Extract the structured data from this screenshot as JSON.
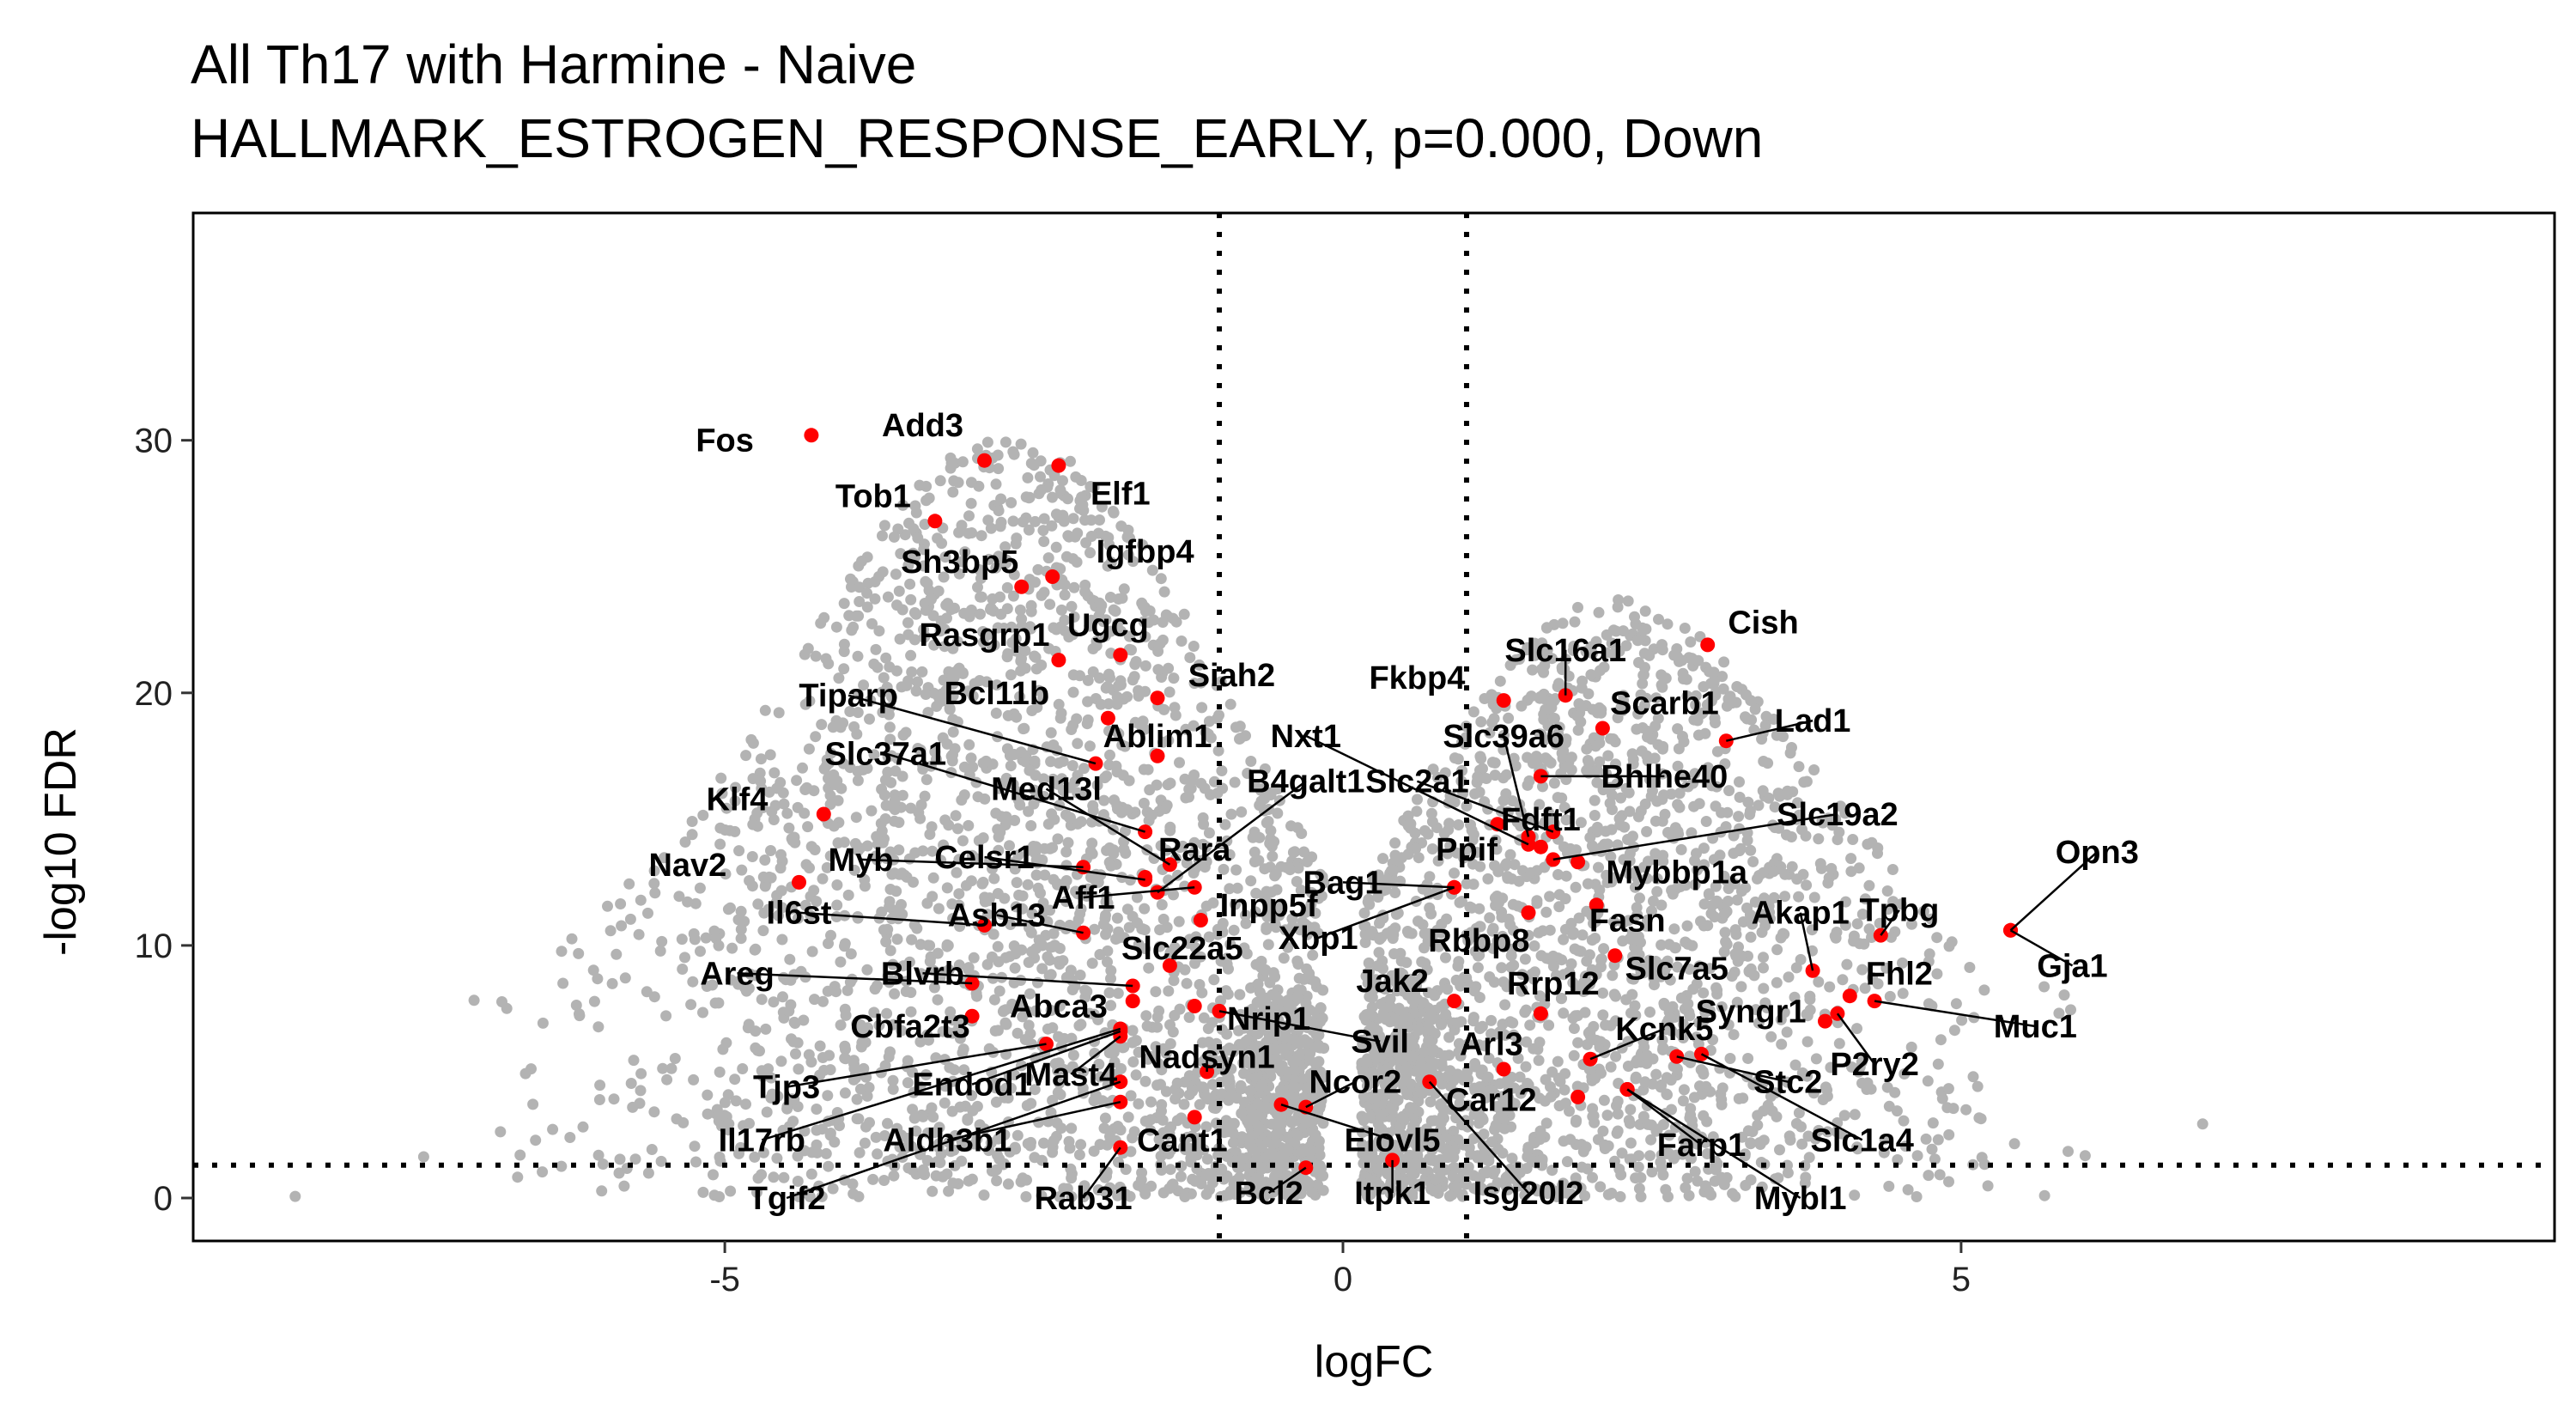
{
  "chart_data": {
    "type": "scatter",
    "title": "All Th17 with Harmine - Naive",
    "subtitle": "HALLMARK_ESTROGEN_RESPONSE_EARLY, p=0.000, Down",
    "xlabel": "logFC",
    "ylabel": "-log10 FDR",
    "xlim": [
      -9.3,
      9.8
    ],
    "ylim": [
      -1.7,
      39
    ],
    "xticks": [
      -5,
      0,
      5
    ],
    "yticks": [
      0,
      10,
      20,
      30
    ],
    "xtick_labels": [
      "-5",
      "0",
      "5"
    ],
    "ytick_labels": [
      "0",
      "10",
      "20",
      "30"
    ],
    "thresholds": {
      "logFC": [
        -1,
        1
      ],
      "neg_log10_fdr": 1.3
    },
    "grid": false,
    "legend": "none",
    "colors": {
      "background_points": "#b3b3b3",
      "highlight_points": "#ff0000",
      "threshold_lines": "#000000"
    },
    "genes": [
      {
        "name": "Fos",
        "x": -4.3,
        "y": 30.2,
        "lx": -5.0,
        "ly": 30.0
      },
      {
        "name": "Add3",
        "x": -2.9,
        "y": 29.2,
        "lx": -3.4,
        "ly": 30.6
      },
      {
        "name": "Tob1",
        "x": -3.3,
        "y": 26.8,
        "lx": -3.8,
        "ly": 27.8
      },
      {
        "name": "Elf1",
        "x": -2.3,
        "y": 29.0,
        "lx": -1.8,
        "ly": 27.9
      },
      {
        "name": "Igfbp4",
        "x": -2.35,
        "y": 24.6,
        "lx": -1.6,
        "ly": 25.6
      },
      {
        "name": "Sh3bp5",
        "x": -2.6,
        "y": 24.2,
        "lx": -3.1,
        "ly": 25.2
      },
      {
        "name": "Ugcg",
        "x": -1.8,
        "y": 21.5,
        "lx": -1.9,
        "ly": 22.7
      },
      {
        "name": "Rasgrp1",
        "x": -2.3,
        "y": 21.3,
        "lx": -2.9,
        "ly": 22.3
      },
      {
        "name": "Siah2",
        "x": -1.5,
        "y": 19.8,
        "lx": -0.9,
        "ly": 20.7
      },
      {
        "name": "Tiparp",
        "x": -2.0,
        "y": 17.2,
        "lx": -4.0,
        "ly": 19.9,
        "line": true
      },
      {
        "name": "Bcl11b",
        "x": -1.9,
        "y": 19.0,
        "lx": -2.8,
        "ly": 20.0
      },
      {
        "name": "Ablim1",
        "x": -1.5,
        "y": 17.5,
        "lx": -1.5,
        "ly": 18.3
      },
      {
        "name": "Slc37a1",
        "x": -1.6,
        "y": 14.5,
        "lx": -3.7,
        "ly": 17.6,
        "line": true
      },
      {
        "name": "Med13l",
        "x": -1.4,
        "y": 13.2,
        "lx": -2.4,
        "ly": 16.2,
        "line": true
      },
      {
        "name": "B4galt1",
        "x": -1.5,
        "y": 12.1,
        "lx": -0.3,
        "ly": 16.5,
        "line": true
      },
      {
        "name": "Slc2a1",
        "x": 1.7,
        "y": 14.5,
        "lx": 0.6,
        "ly": 16.5,
        "line": true
      },
      {
        "name": "Klf4",
        "x": -4.2,
        "y": 15.2,
        "lx": -4.9,
        "ly": 15.8
      },
      {
        "name": "Rara",
        "x": -1.6,
        "y": 12.7,
        "lx": -1.2,
        "ly": 13.8
      },
      {
        "name": "Nav2",
        "x": -4.4,
        "y": 12.5,
        "lx": -5.3,
        "ly": 13.2
      },
      {
        "name": "Myb",
        "x": -2.1,
        "y": 13.1,
        "lx": -3.9,
        "ly": 13.4,
        "line": true
      },
      {
        "name": "Celsr1",
        "x": -1.6,
        "y": 12.6,
        "lx": -2.9,
        "ly": 13.5,
        "line": true
      },
      {
        "name": "Aff1",
        "x": -1.2,
        "y": 12.3,
        "lx": -2.1,
        "ly": 11.9,
        "line": true
      },
      {
        "name": "Inpp5f",
        "x": -1.15,
        "y": 11.0,
        "lx": -0.6,
        "ly": 11.6
      },
      {
        "name": "Asb13",
        "x": -2.1,
        "y": 10.5,
        "lx": -2.8,
        "ly": 11.2,
        "line": true
      },
      {
        "name": "Il6st",
        "x": -2.9,
        "y": 10.8,
        "lx": -4.4,
        "ly": 11.3,
        "line": true
      },
      {
        "name": "Xbp1",
        "x": 0.9,
        "y": 12.3,
        "lx": -0.2,
        "ly": 10.3,
        "line": true
      },
      {
        "name": "Bag1",
        "x": 0.9,
        "y": 12.3,
        "lx": 0.0,
        "ly": 12.5,
        "line": true
      },
      {
        "name": "Slc22a5",
        "x": -1.4,
        "y": 9.2,
        "lx": -1.3,
        "ly": 9.9
      },
      {
        "name": "Blvrb",
        "x": -1.7,
        "y": 8.4,
        "lx": -3.4,
        "ly": 8.9,
        "line": true
      },
      {
        "name": "Areg",
        "x": -3.0,
        "y": 8.5,
        "lx": -4.9,
        "ly": 8.9,
        "line": true
      },
      {
        "name": "Abca3",
        "x": -1.7,
        "y": 7.8,
        "lx": -2.3,
        "ly": 7.6
      },
      {
        "name": "Cbfa2t3",
        "x": -3.0,
        "y": 7.2,
        "lx": -3.5,
        "ly": 6.8
      },
      {
        "name": "Nrip1",
        "x": -1.2,
        "y": 7.6,
        "lx": -0.6,
        "ly": 7.1
      },
      {
        "name": "Svil",
        "x": -1.0,
        "y": 7.4,
        "lx": 0.3,
        "ly": 6.2,
        "line": true
      },
      {
        "name": "Jak2",
        "x": 0.9,
        "y": 7.8,
        "lx": 0.4,
        "ly": 8.6
      },
      {
        "name": "Tjp3",
        "x": -2.4,
        "y": 6.1,
        "lx": -4.5,
        "ly": 4.4,
        "line": true
      },
      {
        "name": "Endod1",
        "x": -1.8,
        "y": 6.6,
        "lx": -3.0,
        "ly": 4.5,
        "line": true
      },
      {
        "name": "Mast4",
        "x": -1.8,
        "y": 6.4,
        "lx": -2.2,
        "ly": 4.9,
        "line": true
      },
      {
        "name": "Nadsyn1",
        "x": -1.1,
        "y": 5.0,
        "lx": -1.1,
        "ly": 5.6,
        "line": true
      },
      {
        "name": "Ncor2",
        "x": -0.3,
        "y": 3.6,
        "lx": 0.1,
        "ly": 4.6,
        "line": true
      },
      {
        "name": "Il17rb",
        "x": -1.8,
        "y": 6.7,
        "lx": -4.7,
        "ly": 2.3,
        "line": true
      },
      {
        "name": "Aldh3b1",
        "x": -1.8,
        "y": 3.8,
        "lx": -3.2,
        "ly": 2.3,
        "line": true
      },
      {
        "name": "Cant1",
        "x": -1.2,
        "y": 3.2,
        "lx": -1.3,
        "ly": 2.3
      },
      {
        "name": "Elovl5",
        "x": -0.5,
        "y": 3.7,
        "lx": 0.4,
        "ly": 2.3,
        "line": true
      },
      {
        "name": "Tgif2",
        "x": -1.8,
        "y": 4.6,
        "lx": -4.5,
        "ly": 0.0,
        "line": true
      },
      {
        "name": "Rab31",
        "x": -1.8,
        "y": 2.0,
        "lx": -2.1,
        "ly": 0.0,
        "line": true
      },
      {
        "name": "Bcl2",
        "x": -0.3,
        "y": 1.2,
        "lx": -0.6,
        "ly": 0.2,
        "line": true
      },
      {
        "name": "Itpk1",
        "x": 0.4,
        "y": 1.5,
        "lx": 0.4,
        "ly": 0.2,
        "line": true
      },
      {
        "name": "Fkbp4",
        "x": 1.3,
        "y": 19.7,
        "lx": 0.6,
        "ly": 20.6
      },
      {
        "name": "Slc16a1",
        "x": 1.8,
        "y": 19.9,
        "lx": 1.8,
        "ly": 21.7,
        "line": true
      },
      {
        "name": "Cish",
        "x": 2.95,
        "y": 21.9,
        "lx": 3.4,
        "ly": 22.8
      },
      {
        "name": "Scarb1",
        "x": 2.1,
        "y": 18.6,
        "lx": 2.6,
        "ly": 19.6
      },
      {
        "name": "Lad1",
        "x": 3.1,
        "y": 18.1,
        "lx": 3.8,
        "ly": 18.9,
        "line": true
      },
      {
        "name": "Slc39a6",
        "x": 1.5,
        "y": 14.3,
        "lx": 1.3,
        "ly": 18.3,
        "line": true
      },
      {
        "name": "Nxt1",
        "x": 1.5,
        "y": 14.0,
        "lx": -0.3,
        "ly": 18.3,
        "line": true
      },
      {
        "name": "Bhlhe40",
        "x": 1.6,
        "y": 16.7,
        "lx": 2.6,
        "ly": 16.7,
        "line": true
      },
      {
        "name": "Fdft1",
        "x": 1.25,
        "y": 14.8,
        "lx": 1.6,
        "ly": 15.0
      },
      {
        "name": "Slc19a2",
        "x": 1.7,
        "y": 13.4,
        "lx": 4.0,
        "ly": 15.2,
        "line": true
      },
      {
        "name": "Ppif",
        "x": 1.6,
        "y": 13.9,
        "lx": 1.0,
        "ly": 13.8
      },
      {
        "name": "Mybbp1a",
        "x": 1.9,
        "y": 13.3,
        "lx": 2.7,
        "ly": 12.9
      },
      {
        "name": "Rbbp8",
        "x": 1.5,
        "y": 11.3,
        "lx": 1.1,
        "ly": 10.2
      },
      {
        "name": "Fasn",
        "x": 2.05,
        "y": 11.6,
        "lx": 2.3,
        "ly": 11.0
      },
      {
        "name": "Akap1",
        "x": 3.8,
        "y": 9.0,
        "lx": 3.7,
        "ly": 11.3,
        "line": true
      },
      {
        "name": "Tpbg",
        "x": 4.35,
        "y": 10.4,
        "lx": 4.5,
        "ly": 11.4,
        "line": true
      },
      {
        "name": "Opn3",
        "x": 5.4,
        "y": 10.6,
        "lx": 6.1,
        "ly": 13.7,
        "line": true
      },
      {
        "name": "Rrp12",
        "x": 1.6,
        "y": 7.3,
        "lx": 1.7,
        "ly": 8.5
      },
      {
        "name": "Slc7a5",
        "x": 2.2,
        "y": 9.6,
        "lx": 2.7,
        "ly": 9.1
      },
      {
        "name": "Fhl2",
        "x": 4.1,
        "y": 8.0,
        "lx": 4.5,
        "ly": 8.9
      },
      {
        "name": "Gja1",
        "x": 5.4,
        "y": 10.6,
        "lx": 5.9,
        "ly": 9.2,
        "line": true
      },
      {
        "name": "Syngr1",
        "x": 3.9,
        "y": 7.0,
        "lx": 3.3,
        "ly": 7.4
      },
      {
        "name": "Muc1",
        "x": 4.3,
        "y": 7.8,
        "lx": 5.6,
        "ly": 6.8,
        "line": true
      },
      {
        "name": "Arl3",
        "x": 1.3,
        "y": 5.1,
        "lx": 1.2,
        "ly": 6.1
      },
      {
        "name": "Kcnk5",
        "x": 2.0,
        "y": 5.5,
        "lx": 2.6,
        "ly": 6.7,
        "line": true
      },
      {
        "name": "P2ry2",
        "x": 4.0,
        "y": 7.3,
        "lx": 4.3,
        "ly": 5.3,
        "line": true
      },
      {
        "name": "Stc2",
        "x": 2.7,
        "y": 5.6,
        "lx": 3.6,
        "ly": 4.6,
        "line": true
      },
      {
        "name": "Car12",
        "x": 1.9,
        "y": 4.0,
        "lx": 1.2,
        "ly": 3.9
      },
      {
        "name": "Slc1a4",
        "x": 2.9,
        "y": 5.7,
        "lx": 4.2,
        "ly": 2.3,
        "line": true
      },
      {
        "name": "Farp1",
        "x": 2.3,
        "y": 4.3,
        "lx": 2.9,
        "ly": 2.1,
        "line": true
      },
      {
        "name": "Isg20l2",
        "x": 0.7,
        "y": 4.6,
        "lx": 1.5,
        "ly": 0.2,
        "line": true
      },
      {
        "name": "Mybl1",
        "x": 2.3,
        "y": 4.3,
        "lx": 3.7,
        "ly": 0.0,
        "line": true
      }
    ]
  }
}
